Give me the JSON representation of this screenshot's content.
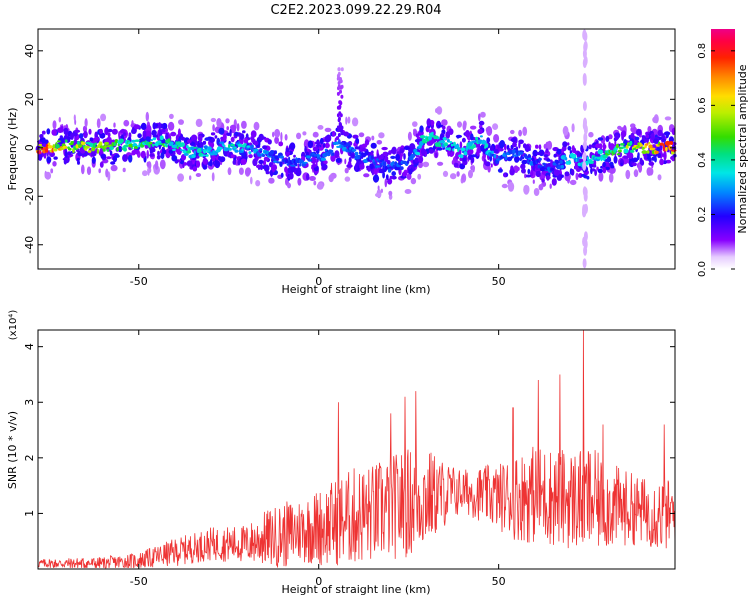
{
  "title": "C2E2.2023.099.22.29.R04",
  "chart_data": [
    {
      "type": "heatmap",
      "xlabel": "Height of straight line (km)",
      "ylabel": "Frequency (Hz)",
      "xlim": [
        -78,
        99
      ],
      "ylim": [
        -50,
        49
      ],
      "xticks": [
        "-50",
        "0",
        "50"
      ],
      "yticks": [
        "-40",
        "-20",
        "0",
        "20",
        "40"
      ],
      "colorbar": {
        "label": "Normalized spectral amplitude",
        "range": [
          0,
          0.88
        ],
        "ticks": [
          "0.0",
          "0.2",
          "0.4",
          "0.6",
          "0.8"
        ]
      },
      "ridge": {
        "x": [
          -78,
          -70,
          -60,
          -50,
          -45,
          -40,
          -35,
          -30,
          -25,
          -20,
          -15,
          -10,
          -5,
          0,
          3,
          6,
          10,
          15,
          20,
          25,
          30,
          35,
          40,
          45,
          48,
          50,
          55,
          60,
          65,
          70,
          75,
          80,
          85,
          90,
          95,
          99
        ],
        "freq": [
          0,
          1,
          0,
          2,
          3,
          1,
          -2,
          -1,
          1,
          0,
          -3,
          -5,
          -6,
          -4,
          -2,
          2,
          -2,
          -6,
          -8,
          -6,
          5,
          2,
          -2,
          4,
          -3,
          -5,
          -3,
          -6,
          -8,
          -4,
          -6,
          -2,
          0,
          0,
          0,
          0
        ],
        "amp": [
          0.8,
          0.6,
          0.5,
          0.4,
          0.45,
          0.4,
          0.35,
          0.3,
          0.35,
          0.3,
          0.25,
          0.2,
          0.2,
          0.2,
          0.25,
          0.25,
          0.2,
          0.2,
          0.2,
          0.2,
          0.35,
          0.35,
          0.3,
          0.35,
          0.25,
          0.2,
          0.2,
          0.2,
          0.2,
          0.3,
          0.3,
          0.4,
          0.5,
          0.6,
          0.75,
          0.85
        ]
      }
    },
    {
      "type": "line",
      "xlabel": "Height of straight line (km)",
      "ylabel": "SNR (10 * v/v)",
      "y_multiplier": "(x10⁴)",
      "xlim": [
        -78,
        99
      ],
      "ylim": [
        0,
        4.3
      ],
      "xticks": [
        "-50",
        "0",
        "50"
      ],
      "yticks": [
        "1",
        "2",
        "3",
        "4"
      ],
      "color": "#ee3333",
      "envelope": {
        "x": [
          -78,
          -60,
          -50,
          -40,
          -30,
          -20,
          -15,
          -10,
          -5,
          0,
          5,
          10,
          15,
          20,
          25,
          30,
          35,
          40,
          45,
          50,
          55,
          60,
          65,
          70,
          75,
          80,
          85,
          90,
          95,
          99
        ],
        "base": [
          0.1,
          0.1,
          0.15,
          0.3,
          0.45,
          0.45,
          0.55,
          0.6,
          0.7,
          0.75,
          0.85,
          0.95,
          1.0,
          1.1,
          1.2,
          1.3,
          1.35,
          1.4,
          1.35,
          1.3,
          1.3,
          1.35,
          1.3,
          1.25,
          1.25,
          1.15,
          1.1,
          1.05,
          1.0,
          0.95
        ],
        "amp": [
          0.08,
          0.12,
          0.15,
          0.25,
          0.3,
          0.35,
          0.5,
          0.6,
          0.6,
          0.7,
          0.8,
          0.9,
          0.9,
          0.95,
          1.0,
          0.9,
          0.6,
          0.4,
          0.5,
          0.6,
          0.8,
          0.9,
          0.9,
          0.9,
          1.0,
          0.8,
          0.7,
          0.6,
          0.7,
          0.6
        ]
      },
      "peaks": [
        {
          "x": 5.5,
          "y": 3.0
        },
        {
          "x": 20,
          "y": 2.8
        },
        {
          "x": 24,
          "y": 3.1
        },
        {
          "x": 27,
          "y": 3.2
        },
        {
          "x": 54,
          "y": 2.9
        },
        {
          "x": 61,
          "y": 3.4
        },
        {
          "x": 67,
          "y": 3.5
        },
        {
          "x": 73.5,
          "y": 4.3
        },
        {
          "x": 79,
          "y": 2.6
        },
        {
          "x": 96,
          "y": 2.6
        }
      ]
    }
  ]
}
